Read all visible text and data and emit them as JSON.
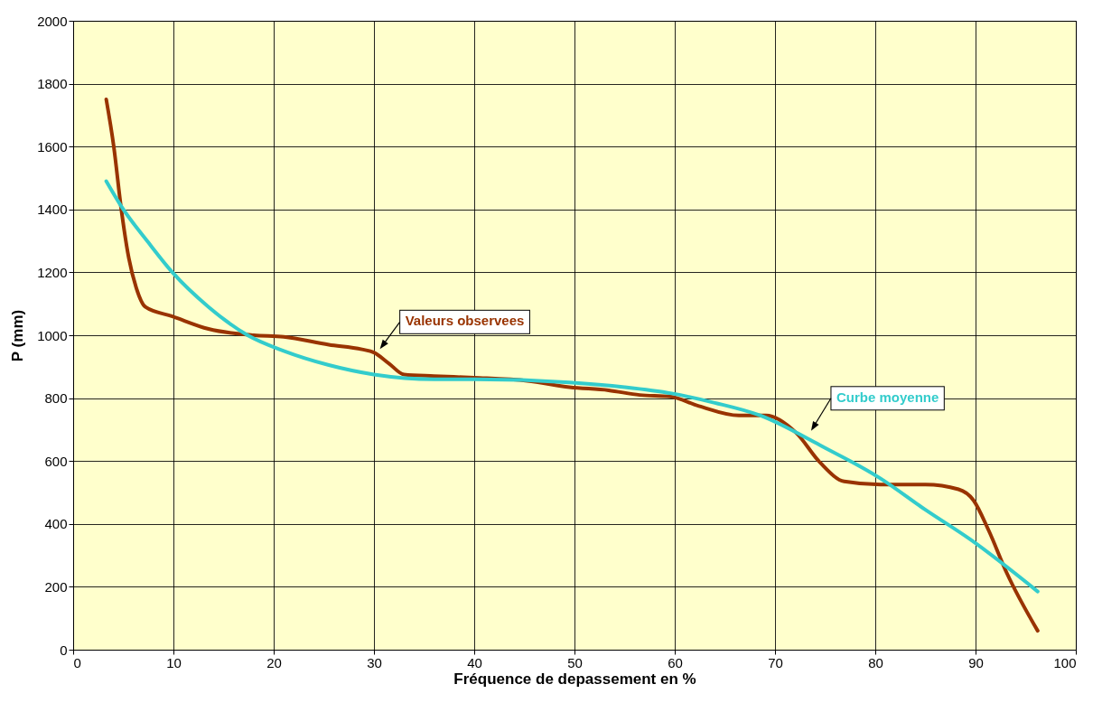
{
  "chart_data": {
    "type": "line",
    "xlabel": "Fréquence de depassement en %",
    "ylabel": "P (mm)",
    "xlim": [
      0,
      100
    ],
    "ylim": [
      0,
      2000
    ],
    "xticks": [
      0,
      10,
      20,
      30,
      40,
      50,
      60,
      70,
      80,
      90,
      100
    ],
    "yticks": [
      0,
      200,
      400,
      600,
      800,
      1000,
      1200,
      1400,
      1600,
      1800,
      2000
    ],
    "grid": true,
    "legend": false,
    "series": [
      {
        "name": "Valeurs observees",
        "color": "#993300",
        "x": [
          3.3,
          4.05,
          4.8,
          5.55,
          6.3,
          7.2,
          9.9,
          13.5,
          18,
          21,
          25.5,
          28.8,
          30,
          31.5,
          33,
          36,
          40,
          45.3,
          49.5,
          53.4,
          56.5,
          59.5,
          62.4,
          66.4,
          69.1,
          72.1,
          74.5,
          76.9,
          80.5,
          85,
          88.3,
          89.8,
          91.3,
          93.1,
          96.2
        ],
        "values": [
          1750,
          1600,
          1400,
          1245,
          1150,
          1090,
          1060,
          1020,
          1000,
          995,
          970,
          955,
          945,
          910,
          875,
          870,
          865,
          855,
          835,
          825,
          810,
          805,
          775,
          745,
          745,
          690,
          595,
          535,
          525,
          525,
          510,
          475,
          380,
          245,
          60
        ]
      },
      {
        "name": "Curbe moyenne",
        "color": "#33cccc",
        "x": [
          3.3,
          4.8,
          7.5,
          9.9,
          13.5,
          17.4,
          21,
          25.5,
          30,
          36,
          40,
          49.5,
          55,
          59.7,
          64,
          68.5,
          74.5,
          80.5,
          85,
          89.5,
          96.2
        ],
        "values": [
          1490,
          1410,
          1295,
          1200,
          1090,
          1000,
          950,
          905,
          875,
          860,
          860,
          850,
          835,
          815,
          785,
          745,
          650,
          545,
          445,
          350,
          185
        ]
      }
    ]
  }
}
